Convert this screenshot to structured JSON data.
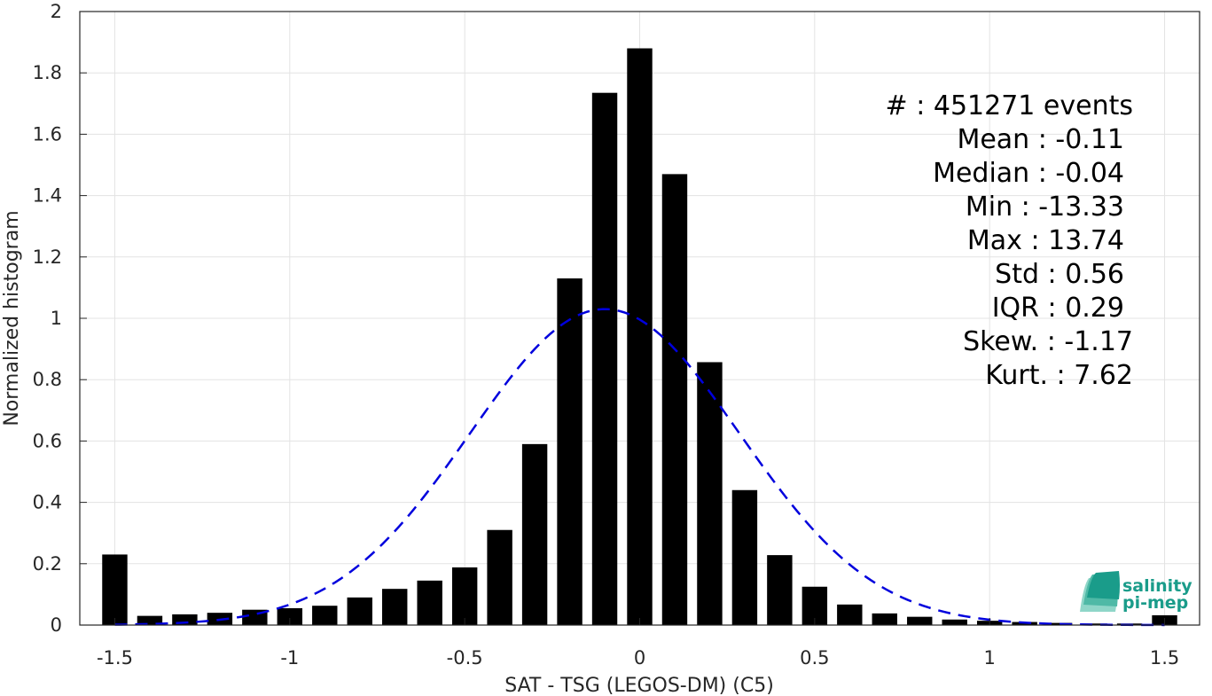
{
  "chart_data": {
    "type": "bar",
    "xlabel": "SAT - TSG (LEGOS-DM) (C5)",
    "ylabel": "Normalized histogram",
    "xlim": [
      -1.6,
      1.6
    ],
    "ylim": [
      0,
      2
    ],
    "xticks": [
      -1.5,
      -1,
      -0.5,
      0,
      0.5,
      1,
      1.5
    ],
    "xtick_labels": [
      "-1.5",
      "-1",
      "-0.5",
      "0",
      "0.5",
      "1",
      "1.5"
    ],
    "yticks": [
      0,
      0.2,
      0.4,
      0.6,
      0.8,
      1,
      1.2,
      1.4,
      1.6,
      1.8,
      2
    ],
    "ytick_labels": [
      "0",
      "0.2",
      "0.4",
      "0.6",
      "0.8",
      "1",
      "1.2",
      "1.4",
      "1.6",
      "1.8",
      "2"
    ],
    "grid": true,
    "bar_color": "#000000",
    "bins": {
      "x": [
        -1.5,
        -1.4,
        -1.3,
        -1.2,
        -1.1,
        -1.0,
        -0.9,
        -0.8,
        -0.7,
        -0.6,
        -0.5,
        -0.4,
        -0.3,
        -0.2,
        -0.1,
        0.0,
        0.1,
        0.2,
        0.3,
        0.4,
        0.5,
        0.6,
        0.7,
        0.8,
        0.9,
        1.0,
        1.1,
        1.2,
        1.3,
        1.4,
        1.5
      ],
      "values": [
        0.23,
        0.03,
        0.035,
        0.04,
        0.05,
        0.055,
        0.063,
        0.09,
        0.118,
        0.145,
        0.188,
        0.31,
        0.59,
        1.13,
        1.735,
        1.88,
        1.47,
        0.857,
        0.44,
        0.228,
        0.125,
        0.067,
        0.038,
        0.027,
        0.018,
        0.014,
        0.01,
        0.007,
        0.005,
        0.005,
        0.032
      ]
    },
    "fit_curve": {
      "type": "normal",
      "mean": -0.1,
      "peak": 1.03,
      "sigma": 0.385,
      "x_range": [
        -1.5,
        1.5
      ],
      "color": "#0000dd",
      "style": "dashed"
    },
    "stats": [
      "#  : 451271 events",
      "Mean : -0.11",
      "Median : -0.04",
      "Min : -13.33",
      "Max : 13.74",
      "Std : 0.56",
      "IQR : 0.29",
      "Skew. : -1.17",
      "Kurt. : 7.62"
    ]
  },
  "logo": {
    "line1": "salinity",
    "line2": "pi-mep",
    "icon": "salinity-wave-logo-icon",
    "color": "#1a9c8a"
  }
}
